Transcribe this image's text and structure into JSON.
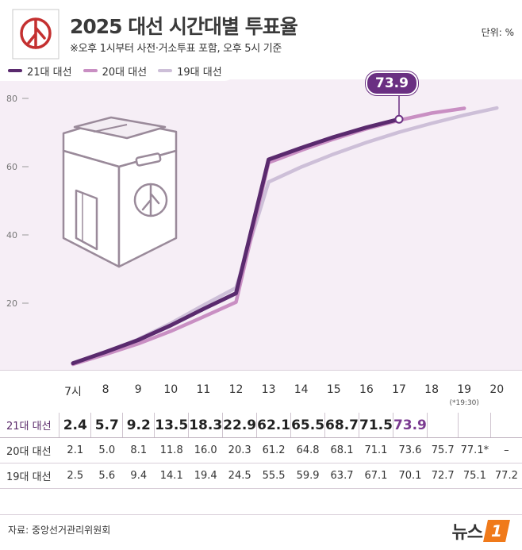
{
  "header": {
    "title": "2025 대선 시간대별 투표율",
    "subtitle": "※오후 1시부터 사전·거소투표 포함, 오후 5시 기준",
    "unit": "단위: %"
  },
  "legend": [
    {
      "label": "21대 대선",
      "color": "#5a2a6e"
    },
    {
      "label": "20대 대선",
      "color": "#c98fc3"
    },
    {
      "label": "19대 대선",
      "color": "#cdbfd8"
    }
  ],
  "callout": "73.9",
  "chart_data": {
    "type": "line",
    "x": [
      7,
      8,
      9,
      10,
      11,
      12,
      13,
      14,
      15,
      16,
      17,
      18,
      19,
      20
    ],
    "ylim": [
      0,
      80
    ],
    "yticks": [
      20,
      40,
      60,
      80
    ],
    "series": [
      {
        "name": "21대 대선",
        "color": "#5a2a6e",
        "values": [
          2.4,
          5.7,
          9.2,
          13.5,
          18.3,
          22.9,
          62.1,
          65.5,
          68.7,
          71.5,
          73.9,
          null,
          null,
          null
        ]
      },
      {
        "name": "20대 대선",
        "color": "#c98fc3",
        "values": [
          2.1,
          5.0,
          8.1,
          11.8,
          16.0,
          20.3,
          61.2,
          64.8,
          68.1,
          71.1,
          73.6,
          75.7,
          77.1,
          null
        ]
      },
      {
        "name": "19대 대선",
        "color": "#cdbfd8",
        "values": [
          2.5,
          5.6,
          9.4,
          14.1,
          19.4,
          24.5,
          55.5,
          59.9,
          63.7,
          67.1,
          70.1,
          72.7,
          75.1,
          77.2
        ]
      }
    ]
  },
  "table": {
    "hours": [
      "7시",
      "8",
      "9",
      "10",
      "11",
      "12",
      "13",
      "14",
      "15",
      "16",
      "17",
      "18",
      "19",
      "20"
    ],
    "hour_note": "(*19:30)",
    "rows": [
      {
        "label": "21대 대선",
        "cells": [
          "2.4",
          "5.7",
          "9.2",
          "13.5",
          "18.3",
          "22.9",
          "62.1",
          "65.5",
          "68.7",
          "71.5",
          "73.9",
          "",
          "",
          ""
        ]
      },
      {
        "label": "20대 대선",
        "cells": [
          "2.1",
          "5.0",
          "8.1",
          "11.8",
          "16.0",
          "20.3",
          "61.2",
          "64.8",
          "68.1",
          "71.1",
          "73.6",
          "75.7",
          "77.1*",
          "–"
        ]
      },
      {
        "label": "19대 대선",
        "cells": [
          "2.5",
          "5.6",
          "9.4",
          "14.1",
          "19.4",
          "24.5",
          "55.5",
          "59.9",
          "63.7",
          "67.1",
          "70.1",
          "72.7",
          "75.1",
          "77.2"
        ]
      }
    ]
  },
  "footer": {
    "source": "자료: 중앙선거관리위원회",
    "brand": "뉴스",
    "brand_badge": "1"
  }
}
